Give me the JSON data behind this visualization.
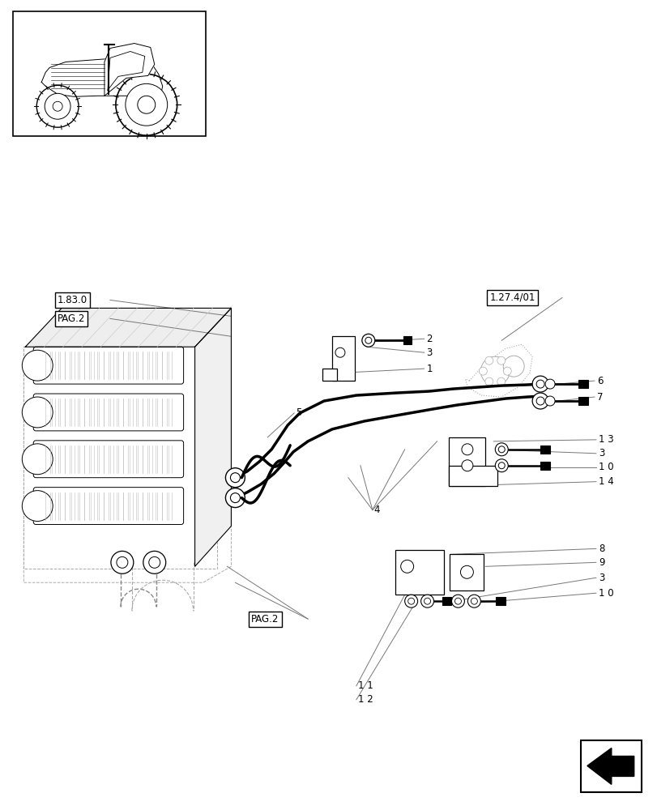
{
  "bg_color": "#ffffff",
  "fig_width": 8.12,
  "fig_height": 10.0,
  "dpi": 100
}
